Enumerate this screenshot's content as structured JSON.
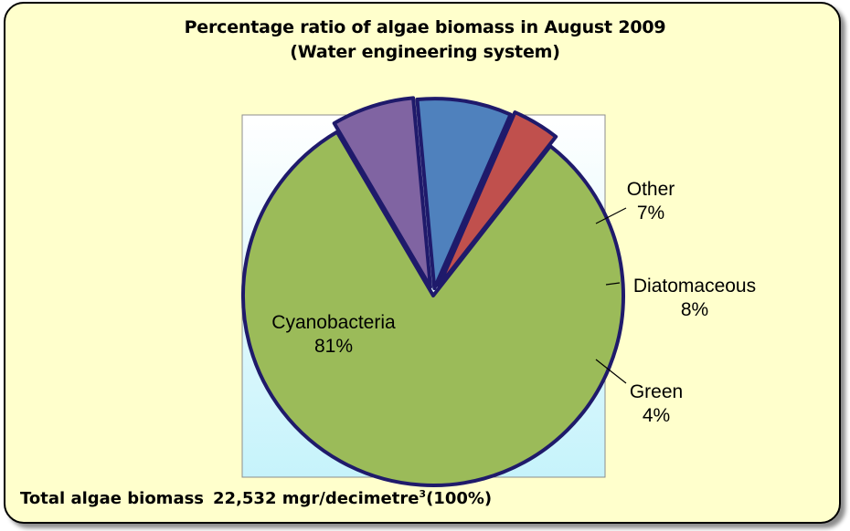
{
  "chart_data": {
    "type": "pie",
    "title": "Percentage ratio of algae biomass in August 2009",
    "subtitle": "(Water engineering system)",
    "slices": [
      {
        "name": "Cyanobacteria",
        "value": 81,
        "label": "81%",
        "color": "#9bbb59"
      },
      {
        "name": "Other",
        "value": 7,
        "label": "7%",
        "color": "#8064a2"
      },
      {
        "name": "Diatomaceous",
        "value": 8,
        "label": "8%",
        "color": "#4f81bd"
      },
      {
        "name": "Green",
        "value": 4,
        "label": "4%",
        "color": "#c0504d"
      }
    ],
    "legend": "none",
    "outline_color": "#1f1a6b"
  },
  "footnote": {
    "label": "Total algae biomass",
    "value": "22,532 mgr/decimetre",
    "superscript": "3",
    "share": "(100%)"
  },
  "colors": {
    "background": "#ffffcc",
    "plot_area_top": "#ffffff",
    "plot_area_bottom": "#c6f3fb"
  }
}
